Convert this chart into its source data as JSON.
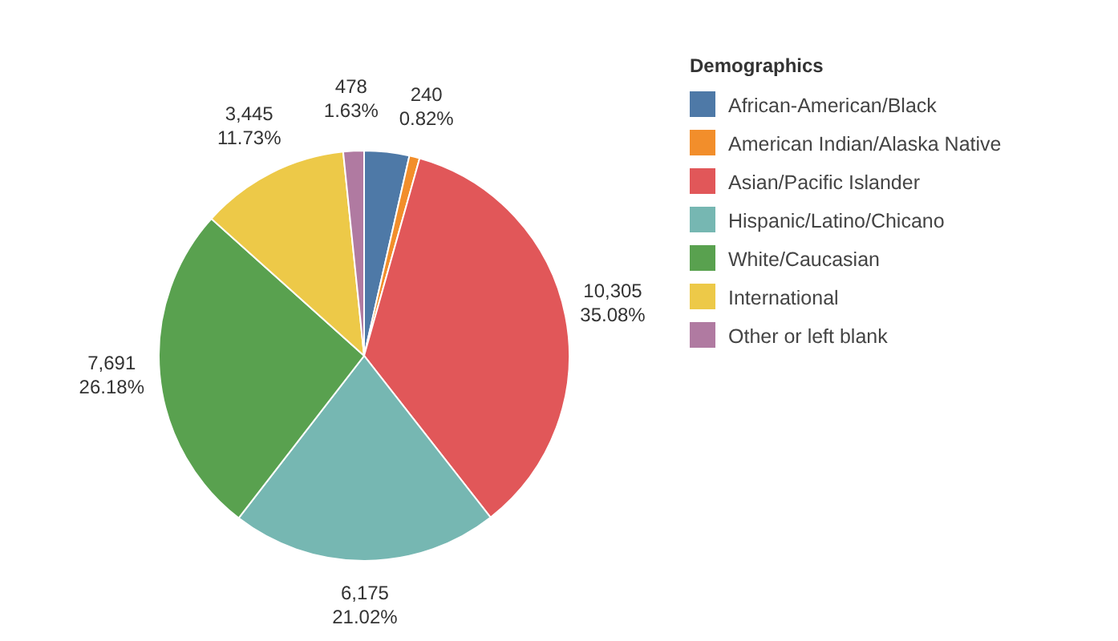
{
  "chart_data": {
    "type": "pie",
    "legend_title": "Demographics",
    "legend": "top right",
    "categories": [
      "African-American/Black",
      "American Indian/Alaska Native",
      "Asian/Pacific Islander",
      "Hispanic/Latino/Chicano",
      "White/Caucasian",
      "International",
      "Other or left blank"
    ],
    "values": [
      1041,
      240,
      10305,
      6175,
      7691,
      3445,
      478
    ],
    "colors": [
      "#4e79a7",
      "#f28e2b",
      "#e15759",
      "#76b7b2",
      "#59a14f",
      "#edc948",
      "#b07aa1"
    ],
    "value_labels": [
      null,
      "240\n0.82%",
      "10,305\n35.08%",
      "6,175\n21.02%",
      "7,691\n26.18%",
      "3,445\n11.73%",
      "478\n1.63%"
    ]
  }
}
